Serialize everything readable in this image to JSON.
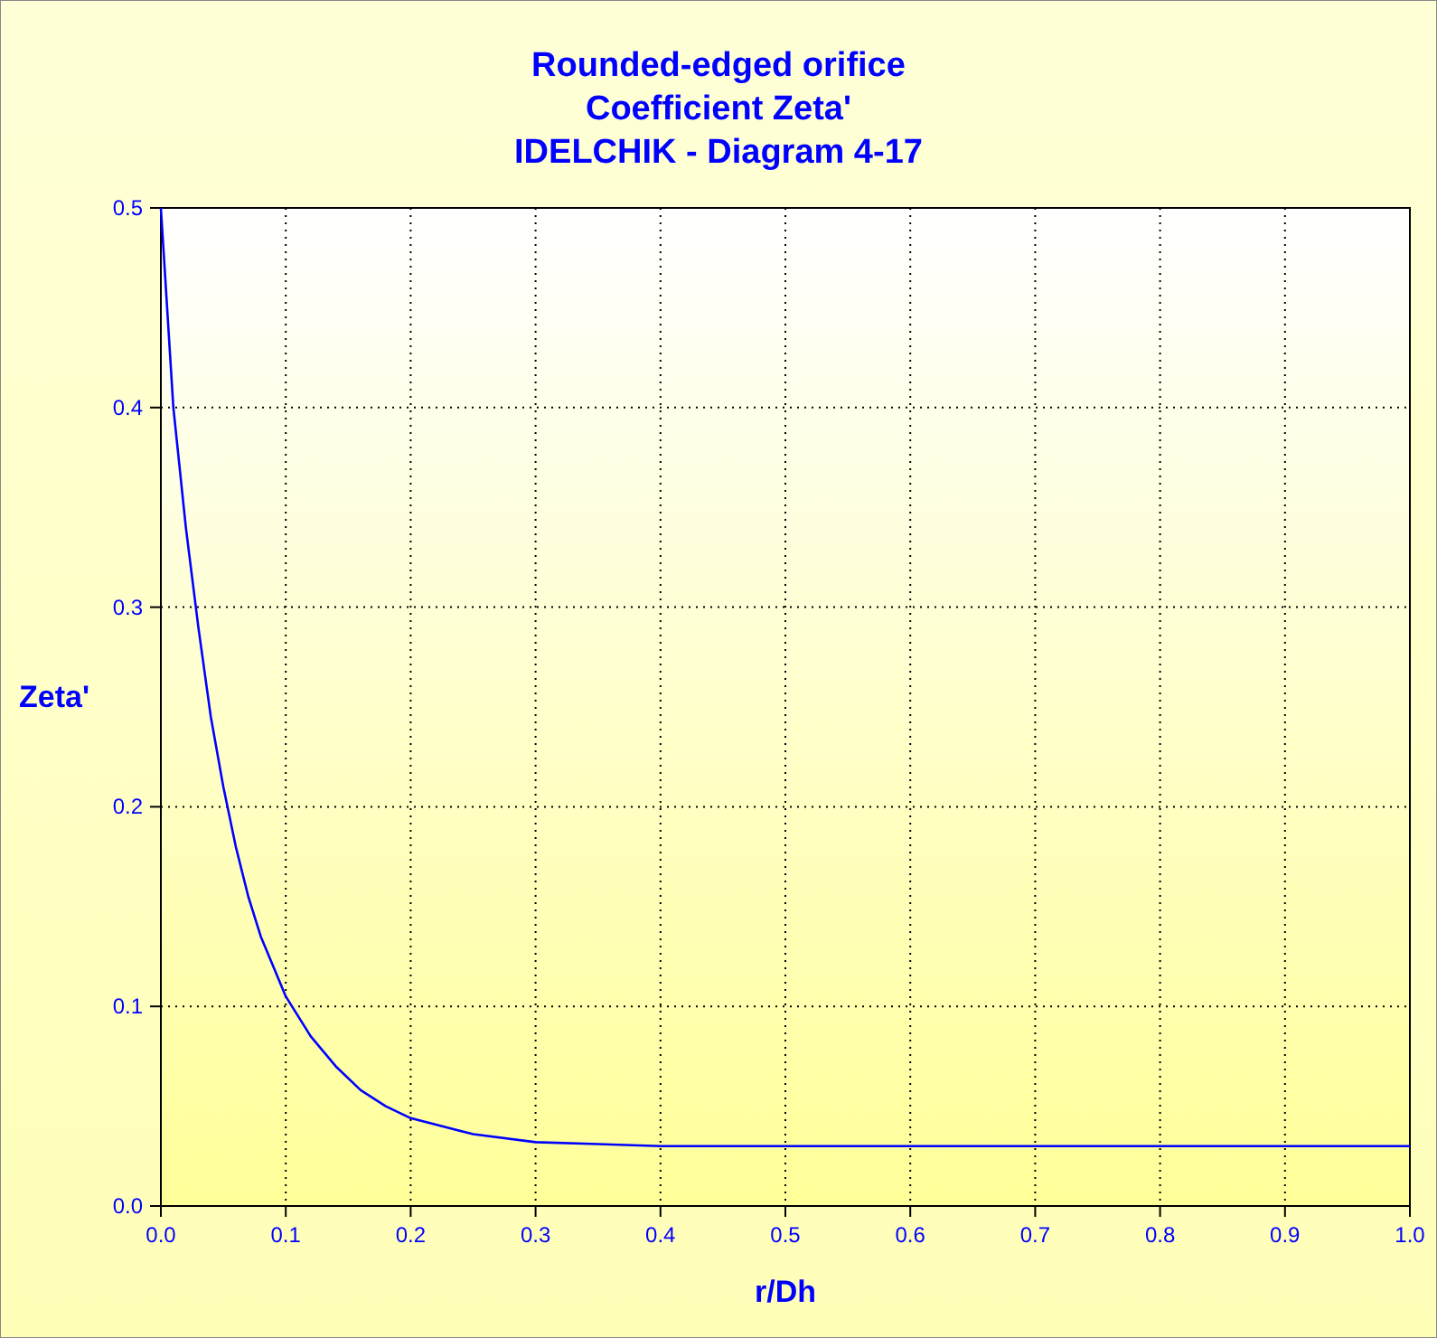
{
  "chart_data": {
    "type": "line",
    "title": "Rounded-edged orifice\nCoefficient Zeta'\nIDELCHIK - Diagram 4-17",
    "xlabel": "r/Dh",
    "ylabel": "Zeta'",
    "x": [
      0,
      0.01,
      0.02,
      0.03,
      0.04,
      0.05,
      0.06,
      0.07,
      0.08,
      0.09,
      0.1,
      0.12,
      0.14,
      0.16,
      0.18,
      0.2,
      0.25,
      0.3,
      0.35,
      0.4,
      0.5,
      0.7,
      1.0
    ],
    "series": [
      {
        "color": "#0000ff",
        "values": [
          0.5,
          0.4,
          0.34,
          0.29,
          0.245,
          0.21,
          0.18,
          0.155,
          0.135,
          0.12,
          0.105,
          0.085,
          0.07,
          0.058,
          0.05,
          0.044,
          0.036,
          0.032,
          0.031,
          0.03,
          0.03,
          0.03,
          0.03
        ]
      }
    ],
    "xlim": [
      0,
      1
    ],
    "ylim": [
      0,
      0.5
    ],
    "xticks": [
      {
        "value": 0,
        "label": "0.0"
      },
      0.1,
      0.2,
      0.3,
      0.4,
      0.5,
      0.6,
      0.7,
      0.8,
      0.9,
      {
        "value": 1,
        "label": "1.0"
      }
    ],
    "yticks": [
      {
        "value": 0,
        "label": "0.0"
      },
      0.1,
      0.2,
      0.3,
      0.4,
      0.5
    ],
    "grid": true,
    "marker": "none",
    "line_style": "solid"
  }
}
